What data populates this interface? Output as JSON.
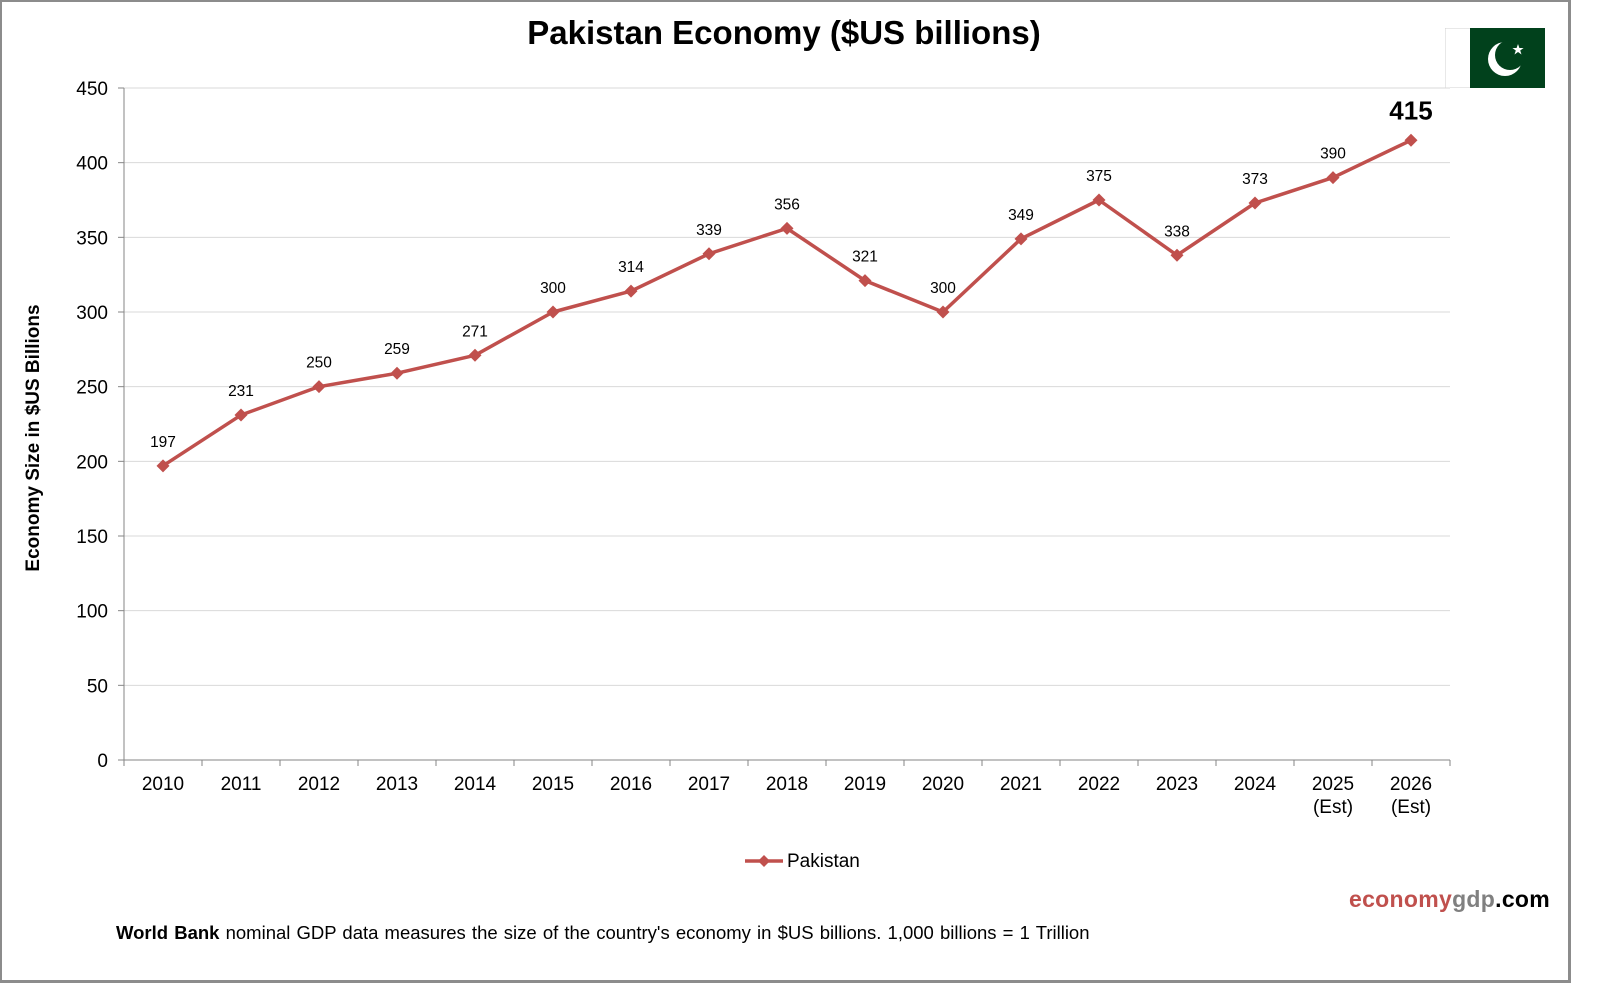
{
  "title": "Pakistan Economy ($US billions)",
  "flag": {
    "icon": "pakistan-flag-icon",
    "green": "#01411c",
    "white": "#ffffff"
  },
  "source": {
    "part1": "economy",
    "part2": "gdp",
    "part3": ".com"
  },
  "footnote": {
    "bold": "World Bank",
    "text": " nominal GDP data  measures the size of the country's economy in $US billions.  1,000 billions = 1 Trillion"
  },
  "colors": {
    "series": "#c0504d",
    "grid": "#d9d9d9",
    "axis": "#868686"
  },
  "chart_data": {
    "type": "line",
    "title": "Pakistan Economy ($US billions)",
    "xlabel": "",
    "ylabel": "Economy Size in $US Billions",
    "ylim": [
      0,
      450
    ],
    "yticks": [
      0,
      50,
      100,
      150,
      200,
      250,
      300,
      350,
      400,
      450
    ],
    "grid": true,
    "legend": "bottom-center",
    "categories": [
      [
        "2010"
      ],
      [
        "2011"
      ],
      [
        "2012"
      ],
      [
        "2013"
      ],
      [
        "2014"
      ],
      [
        "2015"
      ],
      [
        "2016"
      ],
      [
        "2017"
      ],
      [
        "2018"
      ],
      [
        "2019"
      ],
      [
        "2020"
      ],
      [
        "2021"
      ],
      [
        "2022"
      ],
      [
        "2023"
      ],
      [
        "2024"
      ],
      [
        "2025",
        "(Est)"
      ],
      [
        "2026",
        "(Est)"
      ]
    ],
    "series": [
      {
        "name": "Pakistan",
        "marker": "diamond",
        "values": [
          197,
          231,
          250,
          259,
          271,
          300,
          314,
          339,
          356,
          321,
          300,
          349,
          375,
          338,
          373,
          390,
          415
        ],
        "highlight_last": true
      }
    ]
  }
}
